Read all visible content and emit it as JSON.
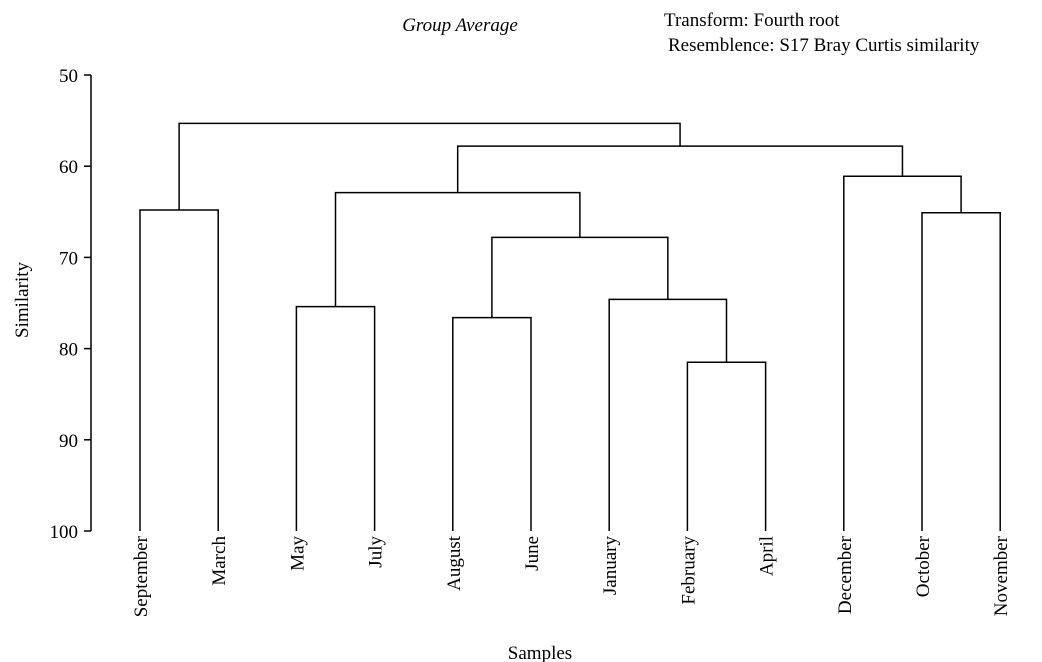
{
  "chart_data": {
    "type": "dendrogram",
    "title": "Group Average",
    "annotations": [
      "Transform: Fourth root",
      "Resemblence: S17 Bray Curtis similarity"
    ],
    "xlabel": "Samples",
    "ylabel": "Similarity",
    "leaves": [
      "September",
      "March",
      "May",
      "July",
      "August",
      "June",
      "January",
      "February",
      "April",
      "December",
      "October",
      "November"
    ],
    "linkage": [
      [
        0,
        1,
        64.8
      ],
      [
        2,
        3,
        75.4
      ],
      [
        4,
        5,
        76.6
      ],
      [
        7,
        8,
        81.5
      ],
      [
        6,
        15,
        74.6
      ],
      [
        14,
        16,
        67.8
      ],
      [
        13,
        17,
        62.9
      ],
      [
        10,
        11,
        65.1
      ],
      [
        9,
        19,
        61.1
      ],
      [
        18,
        20,
        57.8
      ],
      [
        12,
        21,
        55.3
      ]
    ],
    "ylim": [
      50,
      100
    ],
    "yticks": [
      50,
      60,
      70,
      80,
      90,
      100
    ],
    "color": "#000000"
  }
}
